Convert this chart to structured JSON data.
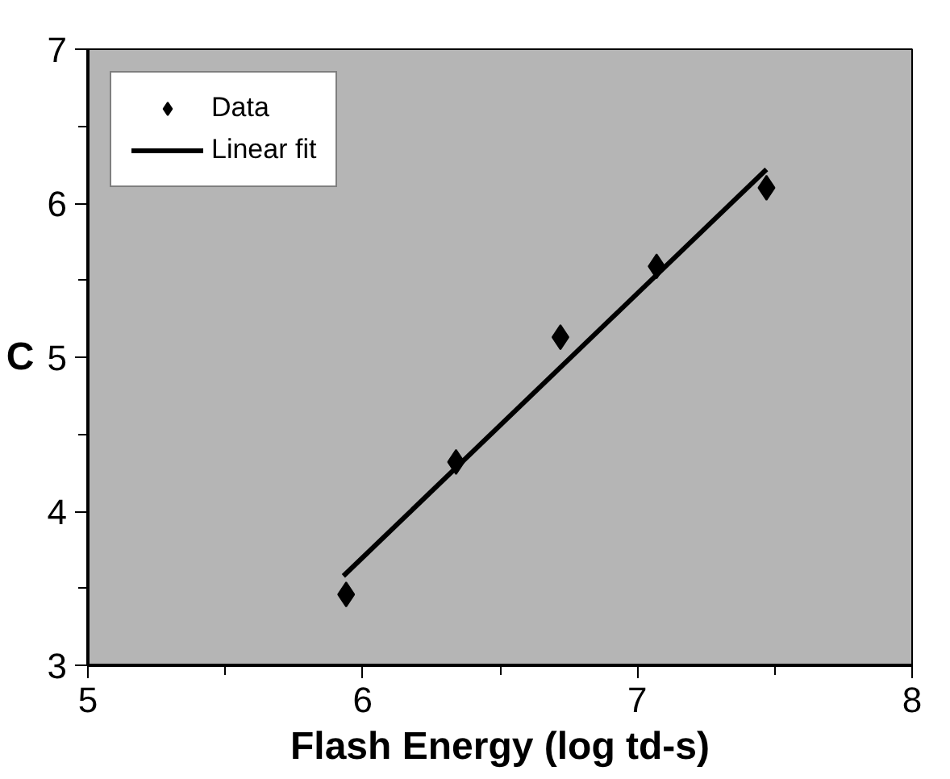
{
  "chart_data": {
    "type": "scatter",
    "xlabel": "Flash Energy (log td-s)",
    "ylabel": "C",
    "xlim": [
      5,
      8
    ],
    "ylim": [
      3,
      7
    ],
    "xticks": [
      5,
      6,
      7,
      8
    ],
    "yticks": [
      3,
      4,
      5,
      6,
      7
    ],
    "series": [
      {
        "name": "Data",
        "color": "#000000",
        "marker": "diamond",
        "x": [
          5.94,
          6.34,
          6.72,
          7.07,
          7.47
        ],
        "values": [
          3.46,
          4.32,
          5.13,
          5.59,
          6.1
        ]
      },
      {
        "name": "Linear fit",
        "type": "line",
        "color": "#000000",
        "marker": "none",
        "line_style": "solid",
        "x": [
          5.93,
          7.47
        ],
        "values": [
          3.58,
          6.22
        ]
      }
    ],
    "legend": "top left",
    "grid": false
  }
}
